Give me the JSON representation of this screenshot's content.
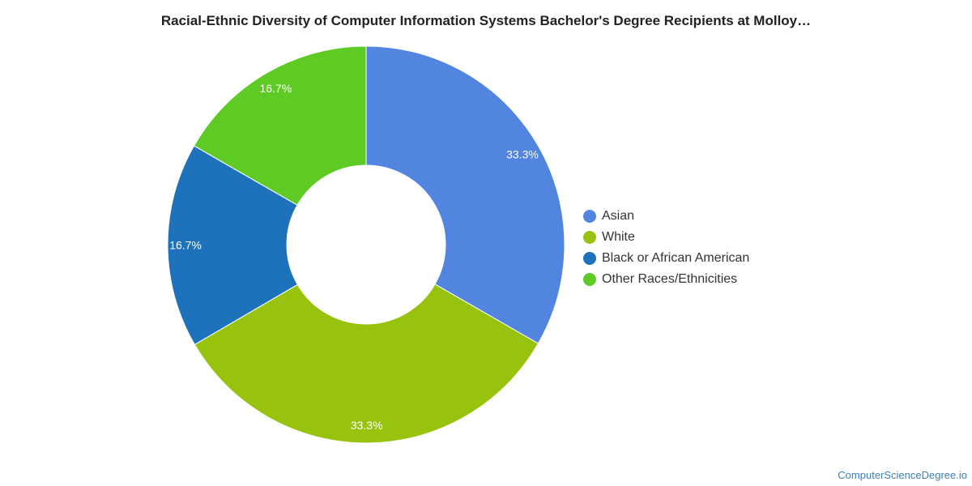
{
  "chart_data": {
    "type": "pie",
    "variant": "donut",
    "title": "Racial-Ethnic Diversity of Computer Information Systems Bachelor's Degree Recipients at Molloy…",
    "slices": [
      {
        "label": "Asian",
        "value": 33.3,
        "display": "33.3%",
        "color": "#5185e0"
      },
      {
        "label": "White",
        "value": 33.3,
        "display": "33.3%",
        "color": "#97c30e"
      },
      {
        "label": "Black or African American",
        "value": 16.7,
        "display": "16.7%",
        "color": "#1e72bb"
      },
      {
        "label": "Other Races/Ethnicities",
        "value": 16.7,
        "display": "16.7%",
        "color": "#5ecb25"
      }
    ],
    "legend_position": "right"
  },
  "footer": {
    "source": "ComputerScienceDegree.io"
  }
}
